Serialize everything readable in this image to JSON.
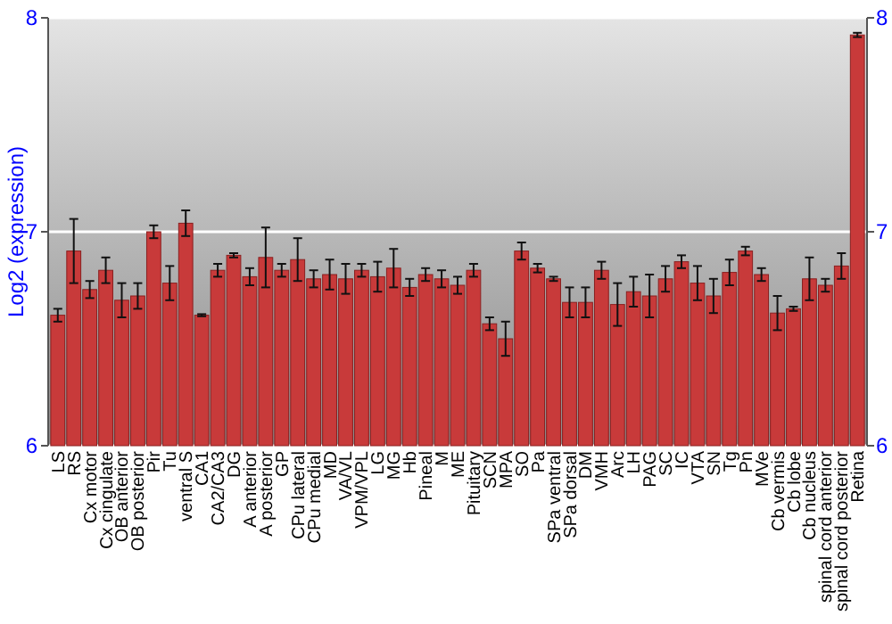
{
  "chart_data": {
    "type": "bar",
    "ylabel": "Log2 (expression)",
    "categories": [
      "LS",
      "RS",
      "Cx motor",
      "Cx cingulate",
      "OB anterior",
      "OB posterior",
      "Pir",
      "Tu",
      "ventral S",
      "CA1",
      "CA2/CA3",
      "DG",
      "A anterior",
      "A posterior",
      "GP",
      "CPu lateral",
      "CPu medial",
      "MD",
      "VA/VL",
      "VPM/VPL",
      "LG",
      "MG",
      "Hb",
      "Pineal",
      "M",
      "ME",
      "Pituitary",
      "SCN",
      "MPA",
      "SO",
      "Pa",
      "SPa ventral",
      "SPa dorsal",
      "DM",
      "VMH",
      "Arc",
      "LH",
      "PAG",
      "SC",
      "IC",
      "VTA",
      "SN",
      "Tg",
      "Pn",
      "MVe",
      "Cb vermis",
      "Cb lobe",
      "Cb nucleus",
      "spinal cord anterior",
      "spinal cord posterior",
      "Retina"
    ],
    "values": [
      6.61,
      6.91,
      6.73,
      6.82,
      6.68,
      6.7,
      7.0,
      6.76,
      7.04,
      6.61,
      6.82,
      6.89,
      6.79,
      6.88,
      6.82,
      6.87,
      6.78,
      6.8,
      6.78,
      6.82,
      6.79,
      6.83,
      6.74,
      6.8,
      6.78,
      6.75,
      6.82,
      6.57,
      6.5,
      6.91,
      6.83,
      6.78,
      6.67,
      6.67,
      6.82,
      6.66,
      6.72,
      6.7,
      6.78,
      6.86,
      6.76,
      6.7,
      6.81,
      6.91,
      6.8,
      6.62,
      6.64,
      6.78,
      6.75,
      6.84,
      7.92
    ],
    "errors": [
      0.03,
      0.15,
      0.04,
      0.06,
      0.08,
      0.06,
      0.03,
      0.08,
      0.06,
      0.005,
      0.03,
      0.01,
      0.04,
      0.14,
      0.03,
      0.1,
      0.04,
      0.07,
      0.07,
      0.03,
      0.07,
      0.09,
      0.04,
      0.03,
      0.04,
      0.04,
      0.03,
      0.03,
      0.08,
      0.04,
      0.02,
      0.01,
      0.07,
      0.07,
      0.04,
      0.1,
      0.07,
      0.1,
      0.06,
      0.03,
      0.08,
      0.08,
      0.06,
      0.02,
      0.03,
      0.08,
      0.01,
      0.1,
      0.03,
      0.06,
      0.01
    ],
    "color": "#c83a3a",
    "ylim": [
      6,
      8
    ],
    "yticks": [
      6,
      7,
      8
    ],
    "y2lim": [
      6,
      8
    ],
    "y2ticks": [
      6,
      7,
      8
    ],
    "grid": "y"
  }
}
